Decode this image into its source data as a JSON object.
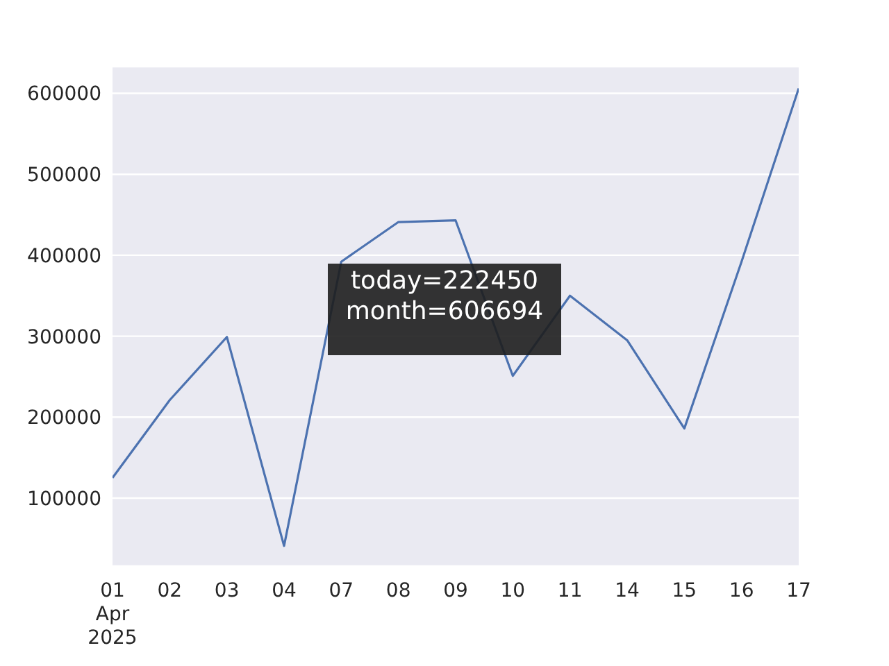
{
  "chart_data": {
    "type": "line",
    "categories": [
      "01\nApr\n2025",
      "02",
      "03",
      "04",
      "07",
      "08",
      "09",
      "10",
      "11",
      "14",
      "15",
      "16",
      "17"
    ],
    "series": [
      {
        "color": "#4c72b0",
        "values": [
          125000,
          221000,
          299000,
          41000,
          392000,
          441000,
          443000,
          251000,
          350000,
          295000,
          186000,
          392000,
          606000
        ]
      }
    ],
    "ylim": [
      16000,
      633000
    ],
    "yticks": [
      100000,
      200000,
      300000,
      400000,
      500000,
      600000
    ],
    "grid": "y",
    "marker": "none",
    "line_style": "solid",
    "annotations": [
      "today=222450\nmonth=606694"
    ]
  }
}
